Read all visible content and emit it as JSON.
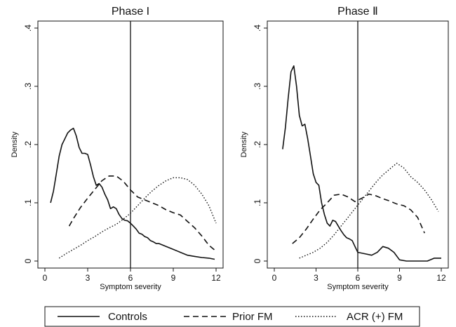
{
  "colors": {
    "ink": "#111111",
    "background": "#ffffff"
  },
  "chart_data": [
    {
      "type": "line",
      "title": "Phase I",
      "xlabel": "Symptom severity",
      "ylabel": "Density",
      "xlim": [
        0,
        12
      ],
      "ylim": [
        0,
        0.4
      ],
      "xticks": [
        0,
        3,
        6,
        9,
        12
      ],
      "yticks": [
        0,
        0.1,
        0.2,
        0.3,
        0.4
      ],
      "xtick_labels": [
        "0",
        "3",
        "6",
        "9",
        "12"
      ],
      "ytick_labels": [
        "0",
        ".1",
        ".2",
        ".3",
        ".4"
      ],
      "vline": 6,
      "grid": false,
      "series": [
        {
          "name": "Controls",
          "dash": "solid",
          "x": [
            0.4,
            0.6,
            0.8,
            1.0,
            1.2,
            1.4,
            1.6,
            1.8,
            2.0,
            2.2,
            2.4,
            2.6,
            2.8,
            3.0,
            3.2,
            3.4,
            3.6,
            3.8,
            4.0,
            4.2,
            4.4,
            4.6,
            4.8,
            5.0,
            5.2,
            5.4,
            5.6,
            5.8,
            6.0,
            6.2,
            6.4,
            6.6,
            6.8,
            7.0,
            7.2,
            7.4,
            7.6,
            7.8,
            8.0,
            8.5,
            9.0,
            9.5,
            10.0,
            10.5,
            11.0,
            11.5,
            11.9
          ],
          "values": [
            0.1,
            0.12,
            0.15,
            0.18,
            0.2,
            0.21,
            0.22,
            0.225,
            0.228,
            0.215,
            0.195,
            0.185,
            0.185,
            0.183,
            0.165,
            0.145,
            0.13,
            0.133,
            0.127,
            0.115,
            0.105,
            0.09,
            0.093,
            0.09,
            0.08,
            0.073,
            0.07,
            0.069,
            0.065,
            0.06,
            0.055,
            0.048,
            0.046,
            0.042,
            0.04,
            0.035,
            0.033,
            0.03,
            0.03,
            0.025,
            0.02,
            0.015,
            0.01,
            0.008,
            0.006,
            0.005,
            0.003
          ]
        },
        {
          "name": "Prior FM",
          "dash": "dashed",
          "x": [
            1.7,
            2.0,
            2.5,
            3.0,
            3.5,
            4.0,
            4.5,
            5.0,
            5.5,
            6.0,
            6.5,
            7.0,
            7.5,
            8.0,
            8.5,
            9.0,
            9.5,
            10.0,
            10.5,
            11.0,
            11.5,
            12.0
          ],
          "values": [
            0.06,
            0.073,
            0.092,
            0.108,
            0.123,
            0.138,
            0.146,
            0.146,
            0.137,
            0.122,
            0.11,
            0.105,
            0.1,
            0.095,
            0.088,
            0.083,
            0.079,
            0.068,
            0.057,
            0.043,
            0.027,
            0.017
          ]
        },
        {
          "name": "ACR (+) FM",
          "dash": "dotted",
          "x": [
            1.0,
            1.5,
            2.0,
            2.5,
            3.0,
            3.5,
            4.0,
            4.5,
            5.0,
            5.5,
            6.0,
            6.5,
            7.0,
            7.5,
            8.0,
            8.5,
            9.0,
            9.5,
            10.0,
            10.5,
            11.0,
            11.5,
            12.0
          ],
          "values": [
            0.005,
            0.013,
            0.02,
            0.027,
            0.035,
            0.042,
            0.05,
            0.057,
            0.063,
            0.072,
            0.082,
            0.095,
            0.108,
            0.12,
            0.13,
            0.138,
            0.143,
            0.143,
            0.14,
            0.13,
            0.115,
            0.095,
            0.065
          ]
        }
      ]
    },
    {
      "type": "line",
      "title": "Phase Ⅱ",
      "xlabel": "Symptom severity",
      "ylabel": "Density",
      "xlim": [
        0,
        12
      ],
      "ylim": [
        0,
        0.4
      ],
      "xticks": [
        0,
        3,
        6,
        9,
        12
      ],
      "yticks": [
        0,
        0.1,
        0.2,
        0.3,
        0.4
      ],
      "xtick_labels": [
        "0",
        "3",
        "6",
        "9",
        "12"
      ],
      "ytick_labels": [
        "0",
        ".1",
        ".2",
        ".3",
        ".4"
      ],
      "vline": 6,
      "grid": false,
      "series": [
        {
          "name": "Controls",
          "dash": "solid",
          "x": [
            0.6,
            0.8,
            1.0,
            1.2,
            1.4,
            1.6,
            1.8,
            2.0,
            2.2,
            2.4,
            2.6,
            2.8,
            3.0,
            3.2,
            3.4,
            3.6,
            3.8,
            4.0,
            4.2,
            4.4,
            4.6,
            4.8,
            5.0,
            5.2,
            5.4,
            5.6,
            5.8,
            6.0,
            6.2,
            6.6,
            7.0,
            7.4,
            7.8,
            8.2,
            8.6,
            9.0,
            9.5,
            10.0,
            10.5,
            11.0,
            11.5,
            12.0
          ],
          "values": [
            0.192,
            0.23,
            0.28,
            0.325,
            0.335,
            0.3,
            0.25,
            0.232,
            0.235,
            0.21,
            0.18,
            0.15,
            0.135,
            0.13,
            0.1,
            0.08,
            0.065,
            0.06,
            0.07,
            0.068,
            0.06,
            0.052,
            0.045,
            0.04,
            0.038,
            0.035,
            0.025,
            0.015,
            0.014,
            0.012,
            0.01,
            0.015,
            0.025,
            0.022,
            0.015,
            0.002,
            0.0,
            0.0,
            0.0,
            0.0,
            0.005,
            0.005
          ]
        },
        {
          "name": "Prior FM",
          "dash": "dashed",
          "x": [
            1.3,
            1.8,
            2.3,
            2.8,
            3.3,
            3.8,
            4.3,
            4.8,
            5.3,
            5.8,
            6.3,
            6.8,
            7.3,
            7.8,
            8.3,
            8.8,
            9.3,
            9.8,
            10.3,
            10.8
          ],
          "values": [
            0.03,
            0.04,
            0.055,
            0.072,
            0.088,
            0.1,
            0.113,
            0.115,
            0.11,
            0.102,
            0.108,
            0.115,
            0.112,
            0.107,
            0.103,
            0.098,
            0.095,
            0.088,
            0.075,
            0.048
          ]
        },
        {
          "name": "ACR (+) FM",
          "dash": "dotted",
          "x": [
            1.8,
            2.3,
            2.8,
            3.3,
            3.8,
            4.3,
            4.8,
            5.3,
            5.8,
            6.3,
            6.8,
            7.3,
            7.8,
            8.3,
            8.8,
            9.3,
            9.8,
            10.3,
            10.8,
            11.3,
            11.8
          ],
          "values": [
            0.005,
            0.01,
            0.015,
            0.022,
            0.032,
            0.045,
            0.06,
            0.075,
            0.09,
            0.105,
            0.12,
            0.135,
            0.148,
            0.158,
            0.168,
            0.16,
            0.145,
            0.135,
            0.122,
            0.105,
            0.085
          ]
        }
      ]
    }
  ],
  "legend": {
    "items": [
      {
        "label": "Controls",
        "dash": "solid"
      },
      {
        "label": "Prior FM",
        "dash": "dashed"
      },
      {
        "label": "ACR (+) FM",
        "dash": "dotted"
      }
    ]
  }
}
